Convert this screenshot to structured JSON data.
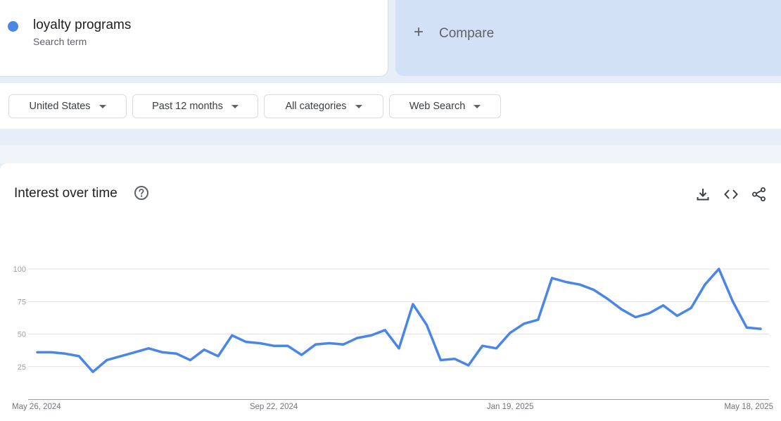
{
  "search_term": {
    "name": "loyalty programs",
    "subtitle": "Search term",
    "color": "#4a86e8"
  },
  "compare": {
    "label": "Compare",
    "icon": "plus-icon"
  },
  "filters": [
    {
      "label": "United States",
      "icon": "caret-down-icon"
    },
    {
      "label": "Past 12 months",
      "icon": "caret-down-icon"
    },
    {
      "label": "All categories",
      "icon": "caret-down-icon"
    },
    {
      "label": "Web Search",
      "icon": "caret-down-icon"
    }
  ],
  "panel": {
    "title": "Interest over time",
    "help_icon": "help-circle-icon",
    "actions": [
      "download-icon",
      "embed-code-icon",
      "share-icon"
    ]
  },
  "chart_data": {
    "type": "line",
    "title": "",
    "xlabel": "",
    "ylabel": "",
    "ylim": [
      0,
      100
    ],
    "y_ticks": [
      "100",
      "75",
      "50",
      "25"
    ],
    "y_tick_values": [
      100,
      75,
      50,
      25
    ],
    "x_tick_labels": [
      "May 26, 2024",
      "Sep 22, 2024",
      "Jan 19, 2025",
      "May 18, 2025"
    ],
    "x_tick_indices": [
      0,
      17,
      34,
      51
    ],
    "grid": true,
    "series": [
      {
        "color": "#4a86e8",
        "values": [
          36,
          36,
          35,
          33,
          21,
          30,
          33,
          36,
          39,
          36,
          35,
          30,
          38,
          33,
          49,
          44,
          43,
          41,
          41,
          34,
          42,
          43,
          42,
          47,
          49,
          53,
          39,
          73,
          57,
          30,
          31,
          26,
          41,
          39,
          51,
          58,
          61,
          93,
          90,
          88,
          84,
          77,
          69,
          63,
          66,
          72,
          64,
          70,
          88,
          100,
          75,
          55,
          54
        ]
      }
    ]
  }
}
